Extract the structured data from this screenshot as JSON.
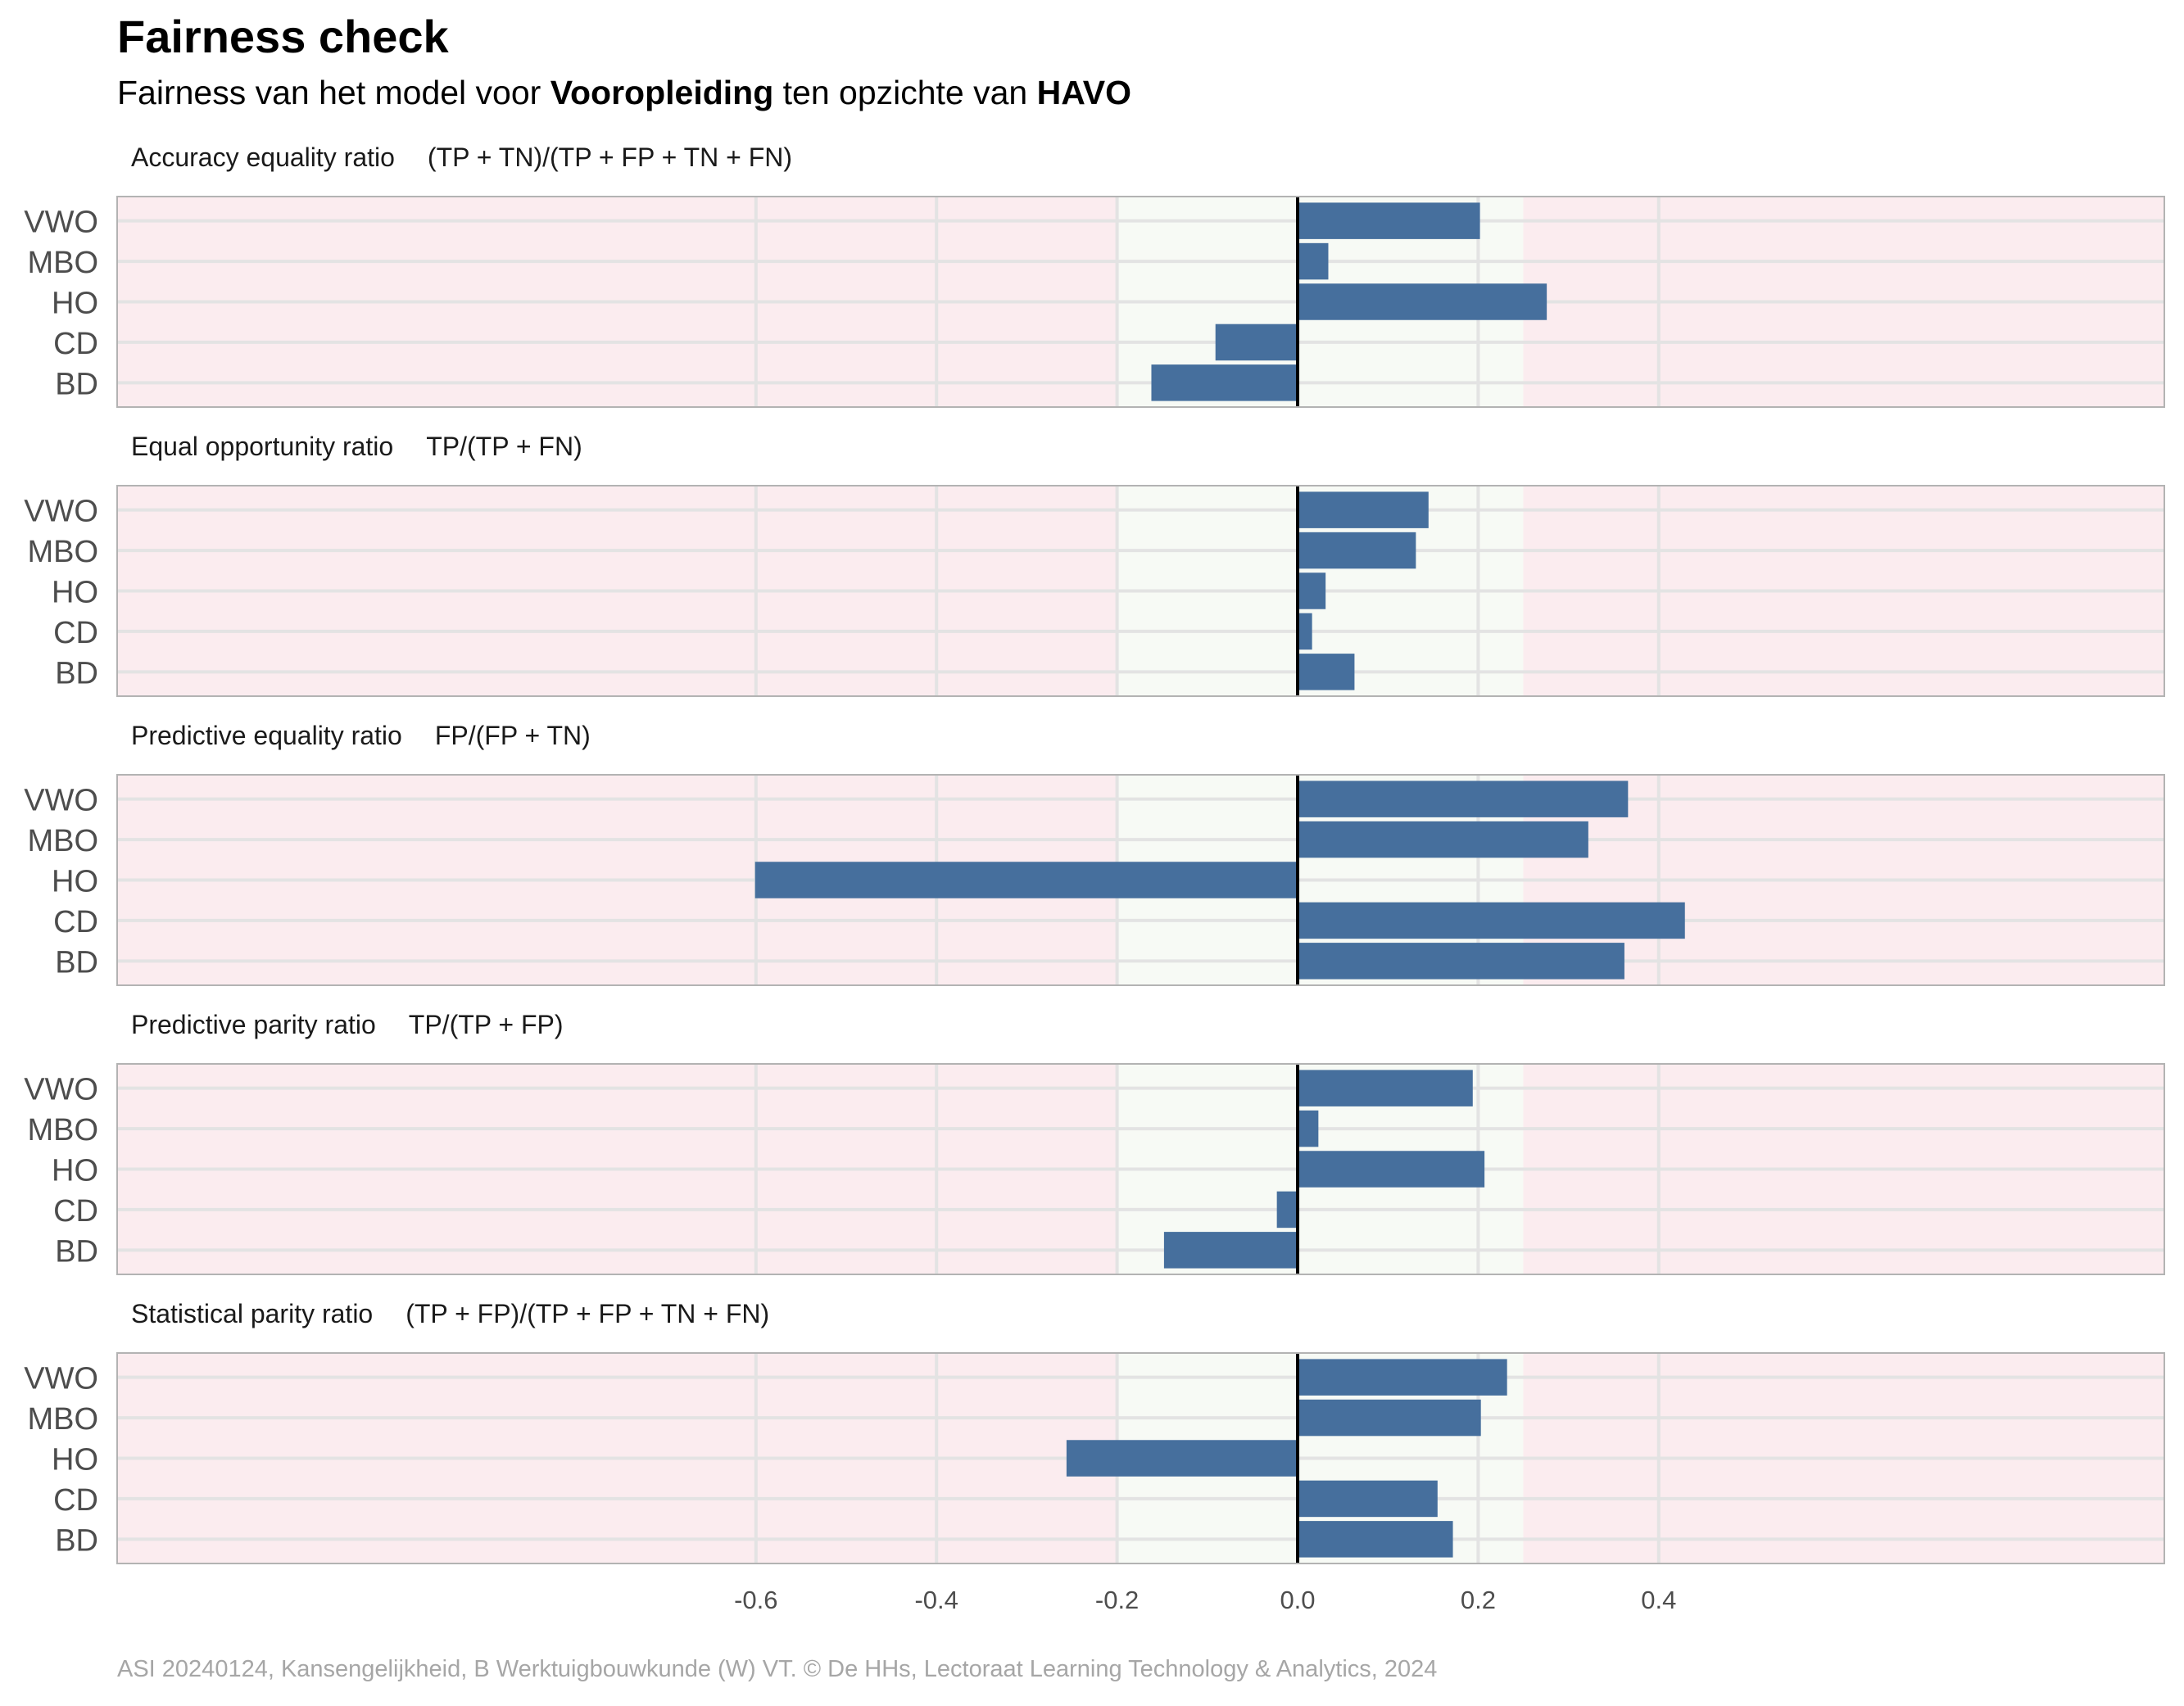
{
  "title": "Fairness check",
  "subtitle": {
    "part1": "Fairness van het model voor ",
    "bold1": "Vooropleiding",
    "part2": " ten opzichte van ",
    "bold2": "HAVO"
  },
  "caption": "ASI 20240124, Kansengelijkheid, B Werktuigbouwkunde (W) VT. © De HHs, Lectoraat Learning Technology & Analytics, 2024",
  "colors": {
    "bar": "#466f9d",
    "fair_zone": "#f7faf5",
    "unfair_zone": "#fbecef",
    "zero_line": "#000000",
    "grid": "#e3e3e3",
    "panel_border": "#b3b3b3"
  },
  "chart_data": {
    "type": "bar",
    "orientation": "horizontal",
    "categories": [
      "VWO",
      "MBO",
      "HO",
      "CD",
      "BD"
    ],
    "xlim": [
      -0.65,
      0.48
    ],
    "x_ticks": [
      "-0.6",
      "-0.4",
      "-0.2",
      "0.0",
      "0.2",
      "0.4"
    ],
    "fair_range": [
      -0.2,
      0.25
    ],
    "panels": [
      {
        "label": "Accuracy equality ratio",
        "formula": "(TP + TN)/(TP + FP + TN + FN)",
        "values": [
          0.202,
          0.034,
          0.276,
          -0.091,
          -0.162
        ]
      },
      {
        "label": "Equal opportunity ratio",
        "formula": "TP/(TP + FN)",
        "values": [
          0.145,
          0.131,
          0.031,
          0.016,
          0.063
        ]
      },
      {
        "label": "Predictive equality ratio",
        "formula": "FP/(FP + TN)",
        "values": [
          0.366,
          0.322,
          -0.601,
          0.429,
          0.362
        ]
      },
      {
        "label": "Predictive parity ratio",
        "formula": "TP/(TP + FP)",
        "values": [
          0.194,
          0.023,
          0.207,
          -0.023,
          -0.148
        ]
      },
      {
        "label": "Statistical parity ratio",
        "formula": "(TP + FP)/(TP + FP + TN + FN)",
        "values": [
          0.232,
          0.203,
          -0.256,
          0.155,
          0.172
        ]
      }
    ]
  }
}
